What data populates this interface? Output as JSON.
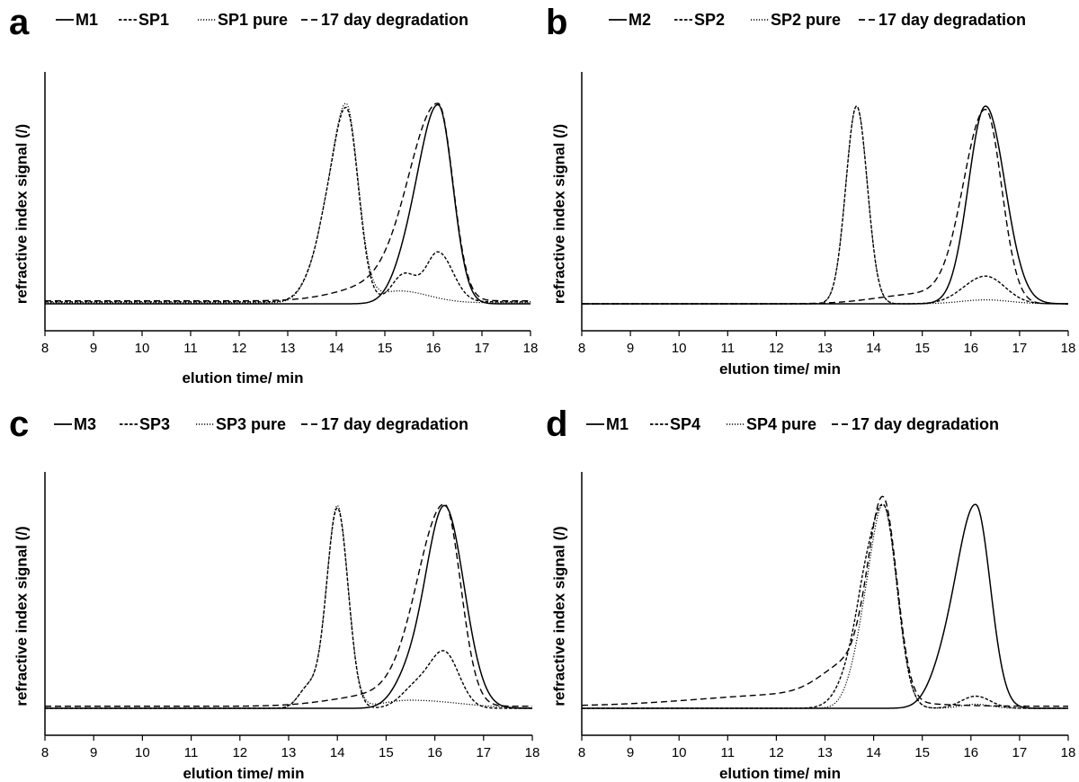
{
  "chart_data": [
    {
      "type": "line",
      "panel_label": "a",
      "xlabel": "elution time/ min",
      "ylabel": "refractive index signal (/)",
      "xlim": [
        8,
        18
      ],
      "ylim": [
        0,
        1.1
      ],
      "x_ticks": [
        "8",
        "9",
        "10",
        "11",
        "12",
        "13",
        "14",
        "15",
        "16",
        "17",
        "18"
      ],
      "legend_position": "top",
      "series": [
        {
          "name": "M1",
          "style": "solid",
          "peaks": [
            {
              "center": 16.1,
              "height": 1.0,
              "sl": 0.42,
              "sr": 0.3
            },
            {
              "center": 15.4,
              "height": 0.1,
              "sl": 0.3,
              "sr": 0.3
            }
          ],
          "baseline": 0.0
        },
        {
          "name": "SP1",
          "style": "dashdot",
          "peaks": [
            {
              "center": 14.2,
              "height": 0.98,
              "sl": 0.32,
              "sr": 0.25
            },
            {
              "center": 13.65,
              "height": 0.15,
              "sl": 0.3,
              "sr": 0.2
            },
            {
              "center": 15.4,
              "height": 0.14,
              "sl": 0.25,
              "sr": 0.25
            },
            {
              "center": 16.1,
              "height": 0.25,
              "sl": 0.25,
              "sr": 0.3
            }
          ],
          "baseline": 0.01
        },
        {
          "name": "SP1 pure",
          "style": "dotted",
          "peaks": [
            {
              "center": 14.2,
              "height": 1.0,
              "sl": 0.32,
              "sr": 0.25
            },
            {
              "center": 13.65,
              "height": 0.15,
              "sl": 0.3,
              "sr": 0.2
            },
            {
              "center": 15.3,
              "height": 0.06,
              "sl": 0.5,
              "sr": 0.6
            }
          ],
          "baseline": 0.005
        },
        {
          "name": "17 day degradation",
          "style": "dashed",
          "peaks": [
            {
              "center": 16.1,
              "height": 0.98,
              "sl": 0.6,
              "sr": 0.3
            },
            {
              "center": 14.8,
              "height": 0.07,
              "sl": 0.8,
              "sr": 0.8
            }
          ],
          "baseline": 0.015
        }
      ]
    },
    {
      "type": "line",
      "panel_label": "b",
      "xlabel": "elution time/ min",
      "ylabel": "refractive index signal (/)",
      "xlim": [
        8,
        18
      ],
      "ylim": [
        0,
        1.1
      ],
      "x_ticks": [
        "8",
        "9",
        "10",
        "11",
        "12",
        "13",
        "14",
        "15",
        "16",
        "17",
        "18"
      ],
      "legend_position": "top",
      "series": [
        {
          "name": "M2",
          "style": "solid",
          "peaks": [
            {
              "center": 16.3,
              "height": 1.0,
              "sl": 0.35,
              "sr": 0.4
            }
          ],
          "baseline": 0.0
        },
        {
          "name": "SP2",
          "style": "dashdot",
          "peaks": [
            {
              "center": 13.65,
              "height": 1.0,
              "sl": 0.22,
              "sr": 0.22
            },
            {
              "center": 16.3,
              "height": 0.14,
              "sl": 0.45,
              "sr": 0.4
            }
          ],
          "baseline": 0.0
        },
        {
          "name": "SP2 pure",
          "style": "dotted",
          "peaks": [
            {
              "center": 13.65,
              "height": 1.0,
              "sl": 0.22,
              "sr": 0.22
            },
            {
              "center": 16.3,
              "height": 0.02,
              "sl": 0.5,
              "sr": 0.5
            }
          ],
          "baseline": 0.0
        },
        {
          "name": "17 day degradation",
          "style": "dashed",
          "peaks": [
            {
              "center": 16.3,
              "height": 0.97,
              "sl": 0.45,
              "sr": 0.33
            },
            {
              "center": 15.0,
              "height": 0.05,
              "sl": 0.9,
              "sr": 0.8
            }
          ],
          "baseline": 0.0
        }
      ]
    },
    {
      "type": "line",
      "panel_label": "c",
      "xlabel": "elution time/ min",
      "ylabel": "refractive index signal (/)",
      "xlim": [
        8,
        18
      ],
      "ylim": [
        0,
        1.1
      ],
      "x_ticks": [
        "8",
        "9",
        "10",
        "11",
        "12",
        "13",
        "14",
        "15",
        "16",
        "17",
        "18"
      ],
      "legend_position": "top",
      "series": [
        {
          "name": "M3",
          "style": "solid",
          "peaks": [
            {
              "center": 16.2,
              "height": 1.0,
              "sl": 0.4,
              "sr": 0.4
            },
            {
              "center": 15.4,
              "height": 0.1,
              "sl": 0.3,
              "sr": 0.3
            }
          ],
          "baseline": 0.0
        },
        {
          "name": "SP3",
          "style": "dashdot",
          "peaks": [
            {
              "center": 14.0,
              "height": 0.99,
              "sl": 0.22,
              "sr": 0.22
            },
            {
              "center": 13.4,
              "height": 0.1,
              "sl": 0.2,
              "sr": 0.2
            },
            {
              "center": 16.2,
              "height": 0.27,
              "sl": 0.3,
              "sr": 0.3
            },
            {
              "center": 15.6,
              "height": 0.1,
              "sl": 0.3,
              "sr": 0.3
            }
          ],
          "baseline": 0.0
        },
        {
          "name": "SP3 pure",
          "style": "dotted",
          "peaks": [
            {
              "center": 14.0,
              "height": 1.0,
              "sl": 0.22,
              "sr": 0.22
            },
            {
              "center": 13.4,
              "height": 0.1,
              "sl": 0.2,
              "sr": 0.2
            },
            {
              "center": 15.5,
              "height": 0.04,
              "sl": 0.6,
              "sr": 1.0
            }
          ],
          "baseline": 0.0
        },
        {
          "name": "17 day degradation",
          "style": "dashed",
          "peaks": [
            {
              "center": 16.2,
              "height": 0.98,
              "sl": 0.55,
              "sr": 0.33
            },
            {
              "center": 15.0,
              "height": 0.06,
              "sl": 1.0,
              "sr": 0.8
            }
          ],
          "baseline": 0.01
        }
      ]
    },
    {
      "type": "line",
      "panel_label": "d",
      "xlabel": "elution time/ min",
      "ylabel": "refractive index signal (/)",
      "xlim": [
        8,
        18
      ],
      "ylim": [
        0,
        1.1
      ],
      "x_ticks": [
        "8",
        "9",
        "10",
        "11",
        "12",
        "13",
        "14",
        "15",
        "16",
        "17",
        "18"
      ],
      "legend_position": "top",
      "series": [
        {
          "name": "M1",
          "style": "solid",
          "peaks": [
            {
              "center": 16.1,
              "height": 1.0,
              "sl": 0.4,
              "sr": 0.3
            },
            {
              "center": 15.4,
              "height": 0.12,
              "sl": 0.3,
              "sr": 0.3
            }
          ],
          "baseline": 0.0
        },
        {
          "name": "SP4",
          "style": "dashdot",
          "peaks": [
            {
              "center": 14.2,
              "height": 1.0,
              "sl": 0.35,
              "sr": 0.28
            },
            {
              "center": 13.7,
              "height": 0.2,
              "sl": 0.35,
              "sr": 0.2
            },
            {
              "center": 16.1,
              "height": 0.06,
              "sl": 0.3,
              "sr": 0.3
            }
          ],
          "baseline": 0.0
        },
        {
          "name": "SP4 pure",
          "style": "dotted",
          "peaks": [
            {
              "center": 14.2,
              "height": 1.0,
              "sl": 0.3,
              "sr": 0.28
            },
            {
              "center": 13.7,
              "height": 0.15,
              "sl": 0.25,
              "sr": 0.2
            },
            {
              "center": 16.1,
              "height": 0.02,
              "sl": 0.3,
              "sr": 0.3
            }
          ],
          "baseline": 0.0
        },
        {
          "name": "17 day degradation",
          "style": "dashed",
          "peaks": [
            {
              "center": 14.2,
              "height": 0.98,
              "sl": 0.3,
              "sr": 0.28
            },
            {
              "center": 13.6,
              "height": 0.18,
              "sl": 0.6,
              "sr": 0.3
            },
            {
              "center": 12.5,
              "height": 0.06,
              "sl": 2.0,
              "sr": 1.5
            }
          ],
          "baseline": 0.01
        }
      ]
    }
  ]
}
